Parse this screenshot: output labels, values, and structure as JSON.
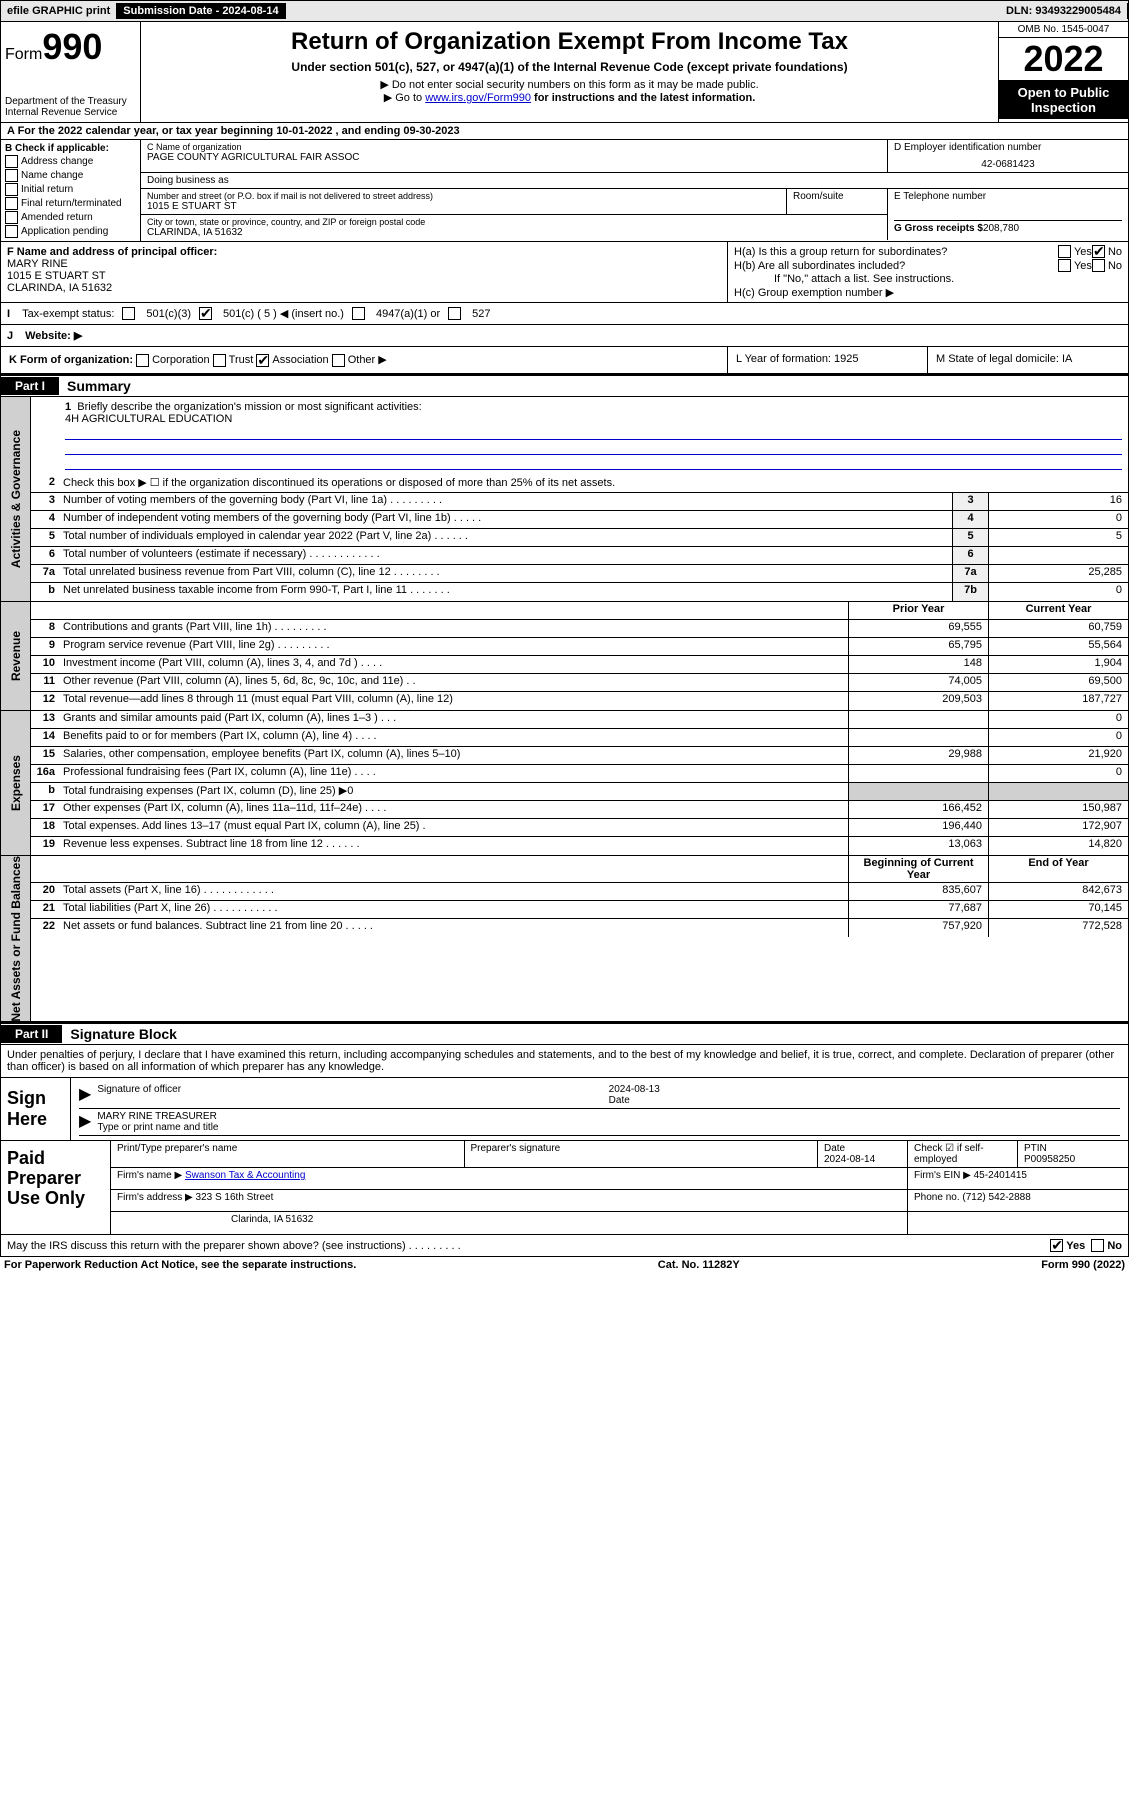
{
  "top": {
    "efile": "efile GRAPHIC print",
    "submission_label": "Submission Date - 2024-08-14",
    "dln": "DLN: 93493229005484"
  },
  "header": {
    "form_prefix": "Form",
    "form_number": "990",
    "dept": "Department of the Treasury",
    "irs": "Internal Revenue Service",
    "title": "Return of Organization Exempt From Income Tax",
    "subtitle": "Under section 501(c), 527, or 4947(a)(1) of the Internal Revenue Code (except private foundations)",
    "notice1": "▶ Do not enter social security numbers on this form as it may be made public.",
    "notice2_pre": "▶ Go to ",
    "notice2_link": "www.irs.gov/Form990",
    "notice2_post": " for instructions and the latest information.",
    "omb": "OMB No. 1545-0047",
    "year": "2022",
    "open1": "Open to Public",
    "open2": "Inspection"
  },
  "rowA": "A For the 2022 calendar year, or tax year beginning 10-01-2022    , and ending 09-30-2023",
  "B": {
    "label": "B Check if applicable:",
    "addr": "Address change",
    "name": "Name change",
    "initial": "Initial return",
    "final": "Final return/terminated",
    "amended": "Amended return",
    "app": "Application pending"
  },
  "C": {
    "label": "C Name of organization",
    "name": "PAGE COUNTY AGRICULTURAL FAIR ASSOC",
    "dba_label": "Doing business as",
    "street_label": "Number and street (or P.O. box if mail is not delivered to street address)",
    "street": "1015 E STUART ST",
    "suite_label": "Room/suite",
    "city_label": "City or town, state or province, country, and ZIP or foreign postal code",
    "city": "CLARINDA, IA  51632"
  },
  "D": {
    "label": "D Employer identification number",
    "ein": "42-0681423"
  },
  "E": {
    "label": "E Telephone number"
  },
  "G": {
    "label": "G Gross receipts $",
    "value": "208,780"
  },
  "F": {
    "label": "F Name and address of principal officer:",
    "name": "MARY RINE",
    "street": "1015 E STUART ST",
    "city": "CLARINDA, IA  51632"
  },
  "H": {
    "a": "H(a)  Is this a group return for subordinates?",
    "a_yes": "Yes",
    "a_no": "No",
    "b": "H(b)  Are all subordinates included?",
    "b_yes": "Yes",
    "b_no": "No",
    "b_note": "If \"No,\" attach a list. See instructions.",
    "c": "H(c)  Group exemption number ▶"
  },
  "I": {
    "label": "Tax-exempt status:",
    "o1": "501(c)(3)",
    "o2": "501(c) ( 5 ) ◀ (insert no.)",
    "o3": "4947(a)(1) or",
    "o4": "527"
  },
  "J": {
    "label": "Website: ▶"
  },
  "K": {
    "label": "K Form of organization:",
    "corp": "Corporation",
    "trust": "Trust",
    "assoc": "Association",
    "other": "Other ▶"
  },
  "L": {
    "label": "L Year of formation: 1925"
  },
  "M": {
    "label": "M State of legal domicile: IA"
  },
  "partI": {
    "header": "Part I",
    "title": "Summary"
  },
  "briefly": {
    "n": "1",
    "label": "Briefly describe the organization's mission or most significant activities:",
    "text": "4H AGRICULTURAL EDUCATION"
  },
  "lines_gov": [
    {
      "n": "2",
      "desc": "Check this box ▶ ☐  if the organization discontinued its operations or disposed of more than 25% of its net assets."
    },
    {
      "n": "3",
      "desc": "Number of voting members of the governing body (Part VI, line 1a)   .    .    .    .    .    .    .    .    .",
      "box": "3",
      "val": "16"
    },
    {
      "n": "4",
      "desc": "Number of independent voting members of the governing body (Part VI, line 1b)   .    .    .    .    .",
      "box": "4",
      "val": "0"
    },
    {
      "n": "5",
      "desc": "Total number of individuals employed in calendar year 2022 (Part V, line 2a)   .    .    .    .    .    .",
      "box": "5",
      "val": "5"
    },
    {
      "n": "6",
      "desc": "Total number of volunteers (estimate if necessary)   .    .    .    .    .    .    .    .    .    .    .    .",
      "box": "6",
      "val": ""
    },
    {
      "n": "7a",
      "desc": "Total unrelated business revenue from Part VIII, column (C), line 12   .    .    .    .    .    .    .    .",
      "box": "7a",
      "val": "25,285"
    },
    {
      "n": "b",
      "desc": "Net unrelated business taxable income from Form 990-T, Part I, line 11   .    .    .    .    .    .    .",
      "box": "7b",
      "val": "0"
    }
  ],
  "rev_head": {
    "prior": "Prior Year",
    "curr": "Current Year"
  },
  "lines_rev": [
    {
      "n": "8",
      "desc": "Contributions and grants (Part VIII, line 1h)   .    .    .    .    .    .    .    .    .",
      "p": "69,555",
      "c": "60,759"
    },
    {
      "n": "9",
      "desc": "Program service revenue (Part VIII, line 2g)   .    .    .    .    .    .    .    .    .",
      "p": "65,795",
      "c": "55,564"
    },
    {
      "n": "10",
      "desc": "Investment income (Part VIII, column (A), lines 3, 4, and 7d )   .    .    .    .",
      "p": "148",
      "c": "1,904"
    },
    {
      "n": "11",
      "desc": "Other revenue (Part VIII, column (A), lines 5, 6d, 8c, 9c, 10c, and 11e)   .    .",
      "p": "74,005",
      "c": "69,500"
    },
    {
      "n": "12",
      "desc": "Total revenue—add lines 8 through 11 (must equal Part VIII, column (A), line 12)",
      "p": "209,503",
      "c": "187,727"
    }
  ],
  "lines_exp": [
    {
      "n": "13",
      "desc": "Grants and similar amounts paid (Part IX, column (A), lines 1–3 )   .    .    .",
      "p": "",
      "c": "0"
    },
    {
      "n": "14",
      "desc": "Benefits paid to or for members (Part IX, column (A), line 4)   .    .    .    .",
      "p": "",
      "c": "0"
    },
    {
      "n": "15",
      "desc": "Salaries, other compensation, employee benefits (Part IX, column (A), lines 5–10)",
      "p": "29,988",
      "c": "21,920"
    },
    {
      "n": "16a",
      "desc": "Professional fundraising fees (Part IX, column (A), line 11e)   .    .    .    .",
      "p": "",
      "c": "0"
    },
    {
      "n": "b",
      "desc": "Total fundraising expenses (Part IX, column (D), line 25) ▶0",
      "p": "shade",
      "c": "shade"
    },
    {
      "n": "17",
      "desc": "Other expenses (Part IX, column (A), lines 11a–11d, 11f–24e)   .    .    .    .",
      "p": "166,452",
      "c": "150,987"
    },
    {
      "n": "18",
      "desc": "Total expenses. Add lines 13–17 (must equal Part IX, column (A), line 25)   .",
      "p": "196,440",
      "c": "172,907"
    },
    {
      "n": "19",
      "desc": "Revenue less expenses. Subtract line 18 from line 12   .    .    .    .    .    .",
      "p": "13,063",
      "c": "14,820"
    }
  ],
  "na_head": {
    "begin": "Beginning of Current Year",
    "end": "End of Year"
  },
  "lines_na": [
    {
      "n": "20",
      "desc": "Total assets (Part X, line 16)   .    .    .    .    .    .    .    .    .    .    .    .",
      "p": "835,607",
      "c": "842,673"
    },
    {
      "n": "21",
      "desc": "Total liabilities (Part X, line 26)   .    .    .    .    .    .    .    .    .    .    .",
      "p": "77,687",
      "c": "70,145"
    },
    {
      "n": "22",
      "desc": "Net assets or fund balances. Subtract line 21 from line 20   .    .    .    .    .",
      "p": "757,920",
      "c": "772,528"
    }
  ],
  "side_tabs": {
    "gov": "Activities & Governance",
    "rev": "Revenue",
    "exp": "Expenses",
    "na": "Net Assets or Fund Balances"
  },
  "partII": {
    "header": "Part II",
    "title": "Signature Block"
  },
  "sig": {
    "decl": "Under penalties of perjury, I declare that I have examined this return, including accompanying schedules and statements, and to the best of my knowledge and belief, it is true, correct, and complete. Declaration of preparer (other than officer) is based on all information of which preparer has any knowledge.",
    "sign_here": "Sign Here",
    "sig_officer": "Signature of officer",
    "date_lbl": "Date",
    "date": "2024-08-13",
    "officer": "MARY RINE  TREASURER",
    "type_name": "Type or print name and title"
  },
  "paid": {
    "label": "Paid Preparer Use Only",
    "print_lbl": "Print/Type preparer's name",
    "sig_lbl": "Preparer's signature",
    "date_lbl": "Date",
    "date": "2024-08-14",
    "check_lbl": "Check ☑ if self-employed",
    "ptin_lbl": "PTIN",
    "ptin": "P00958250",
    "firm_name_lbl": "Firm's name   ▶",
    "firm_name": "Swanson Tax & Accounting",
    "firm_ein_lbl": "Firm's EIN ▶",
    "firm_ein": "45-2401415",
    "firm_addr_lbl": "Firm's address ▶",
    "firm_addr": "323 S 16th Street",
    "firm_city": "Clarinda, IA  51632",
    "phone_lbl": "Phone no.",
    "phone": "(712) 542-2888"
  },
  "irs_discuss": {
    "text": "May the IRS discuss this return with the preparer shown above? (see instructions)   .    .    .    .    .    .    .    .    .",
    "yes": "Yes",
    "no": "No"
  },
  "footer": {
    "pra": "For Paperwork Reduction Act Notice, see the separate instructions.",
    "cat": "Cat. No. 11282Y",
    "form": "Form 990 (2022)"
  }
}
